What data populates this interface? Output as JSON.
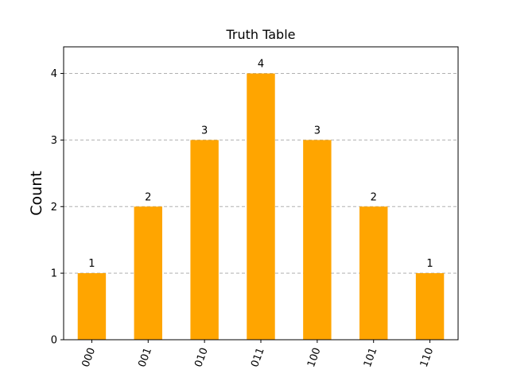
{
  "chart_data": {
    "type": "bar",
    "title": "Truth Table",
    "xlabel": "",
    "ylabel": "Count",
    "categories": [
      "000",
      "001",
      "010",
      "011",
      "100",
      "101",
      "110"
    ],
    "values": [
      1,
      2,
      3,
      4,
      3,
      2,
      1
    ],
    "ylim": [
      0,
      4.4
    ],
    "yticks": [
      0,
      1,
      2,
      3,
      4
    ],
    "grid": "horizontal dashed",
    "bar_color": "#FFA500",
    "x_tick_rotation": "70deg"
  }
}
